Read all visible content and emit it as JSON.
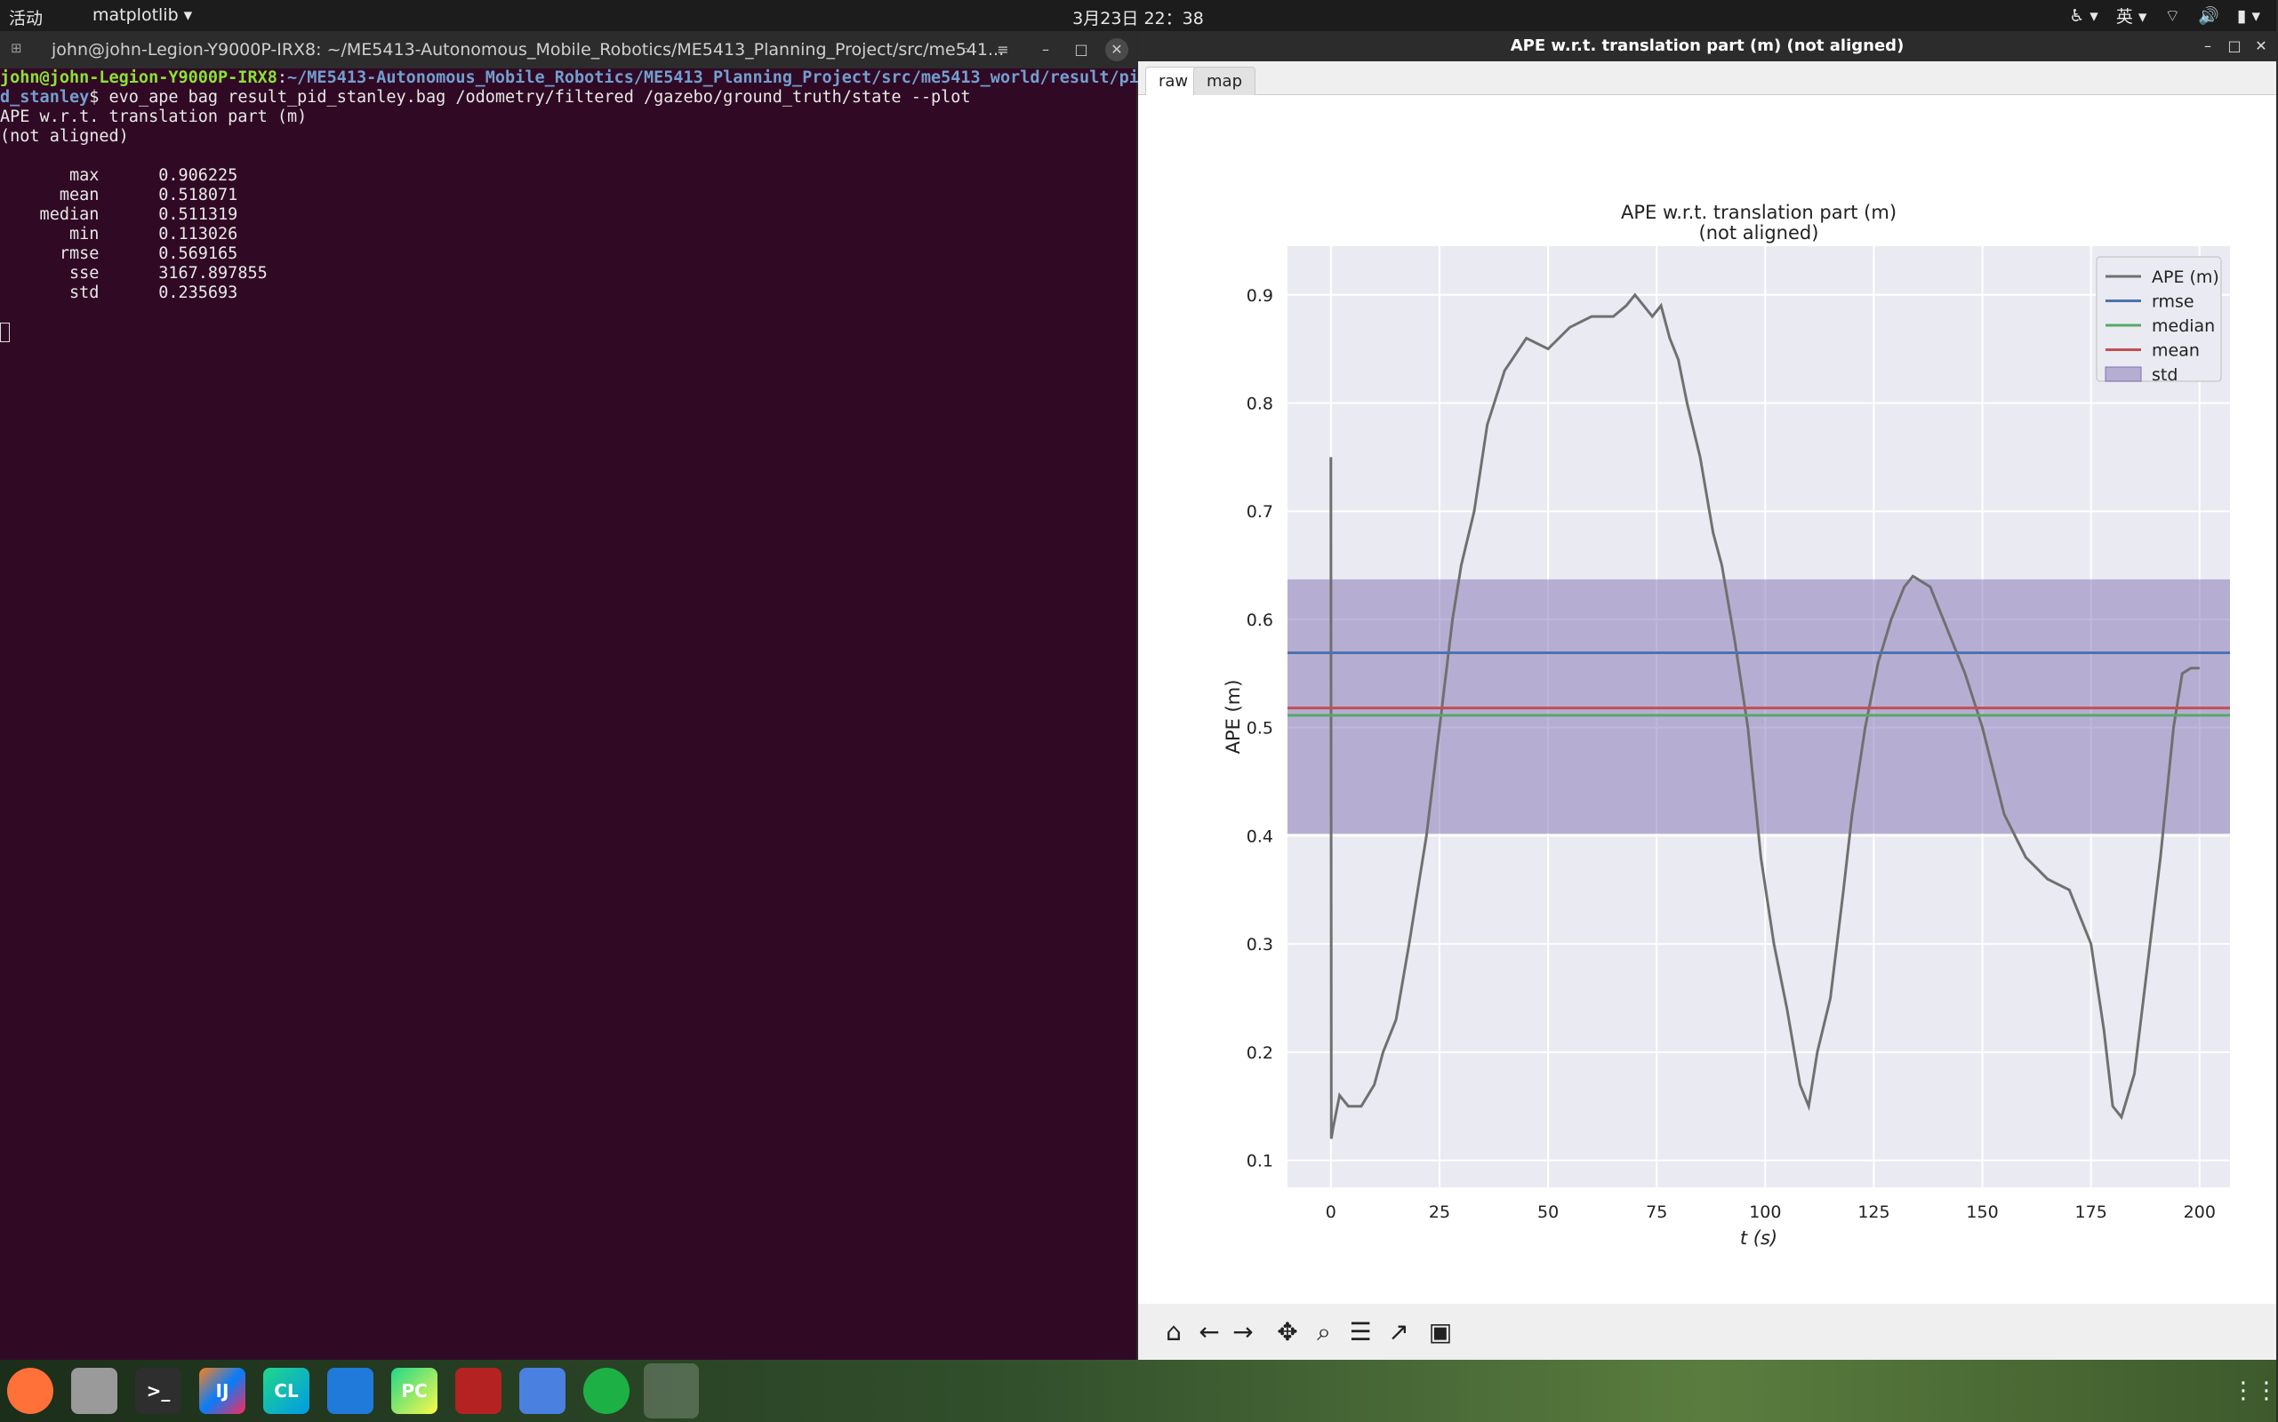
{
  "topbar": {
    "activities": "活动",
    "app_menu": "matplotlib",
    "clock": "3月23日 22：38",
    "input_method": "英"
  },
  "terminal": {
    "title": "john@john-Legion-Y9000P-IRX8: ~/ME5413-Autonomous_Mobile_Robotics/ME5413_Planning_Project/src/me541...",
    "prompt_user": "john@john-Legion-Y9000P-IRX8",
    "prompt_path_line1": "~/ME5413-Autonomous_Mobile_Robotics/ME5413_Planning_Project/src/me5413_world/result/pi",
    "prompt_path_line2": "d_stanley",
    "command": "$ evo_ape bag result_pid_stanley.bag /odometry/filtered /gazebo/ground_truth/state --plot",
    "output_title": "APE w.r.t. translation part (m)",
    "output_subtitle": "(not aligned)",
    "stats": [
      {
        "name": "max",
        "value": "0.906225"
      },
      {
        "name": "mean",
        "value": "0.518071"
      },
      {
        "name": "median",
        "value": "0.511319"
      },
      {
        "name": "min",
        "value": "0.113026"
      },
      {
        "name": "rmse",
        "value": "0.569165"
      },
      {
        "name": "sse",
        "value": "3167.897855"
      },
      {
        "name": "std",
        "value": "0.235693"
      }
    ]
  },
  "plot_window": {
    "title": "APE w.r.t. translation part (m) (not aligned)",
    "tabs": [
      "raw",
      "map"
    ],
    "active_tab": "raw"
  },
  "chart_data": {
    "type": "line",
    "title": "APE w.r.t. translation part (m)",
    "subtitle": "(not aligned)",
    "xlabel": "t (s)",
    "ylabel": "APE (m)",
    "xlim": [
      -10,
      207
    ],
    "ylim": [
      0.075,
      0.945
    ],
    "xticks": [
      0,
      25,
      50,
      75,
      100,
      125,
      150,
      175,
      200
    ],
    "yticks": [
      0.1,
      0.2,
      0.3,
      0.4,
      0.5,
      0.6,
      0.7,
      0.8,
      0.9
    ],
    "grid": true,
    "legend_position": "top-right",
    "legend": [
      "APE (m)",
      "rmse",
      "median",
      "mean",
      "std"
    ],
    "colors": {
      "ape": "#707070",
      "rmse": "#4c72b0",
      "median": "#55a868",
      "mean": "#c44e52",
      "std": "#8172b2",
      "background": "#eaeaf2"
    },
    "stats": {
      "rmse": 0.569165,
      "median": 0.511319,
      "mean": 0.518071,
      "std": 0.235693
    },
    "std_band": [
      0.402,
      0.637
    ],
    "series": [
      {
        "name": "APE (m)",
        "x": [
          0,
          0.1,
          0.5,
          2,
          4,
          7,
          10,
          12,
          15,
          18,
          20,
          22,
          25,
          28,
          30,
          33,
          36,
          40,
          45,
          50,
          55,
          60,
          65,
          68,
          70,
          72,
          74,
          76,
          78,
          80,
          82,
          85,
          88,
          90,
          93,
          96,
          99,
          102,
          105,
          108,
          110,
          112,
          115,
          118,
          120,
          123,
          126,
          129,
          132,
          134,
          136,
          138,
          140,
          143,
          146,
          150,
          155,
          160,
          165,
          170,
          175,
          178,
          180,
          182,
          185,
          188,
          191,
          194,
          196,
          198,
          200
        ],
        "y": [
          0.75,
          0.12,
          0.13,
          0.16,
          0.15,
          0.15,
          0.17,
          0.2,
          0.23,
          0.3,
          0.35,
          0.4,
          0.5,
          0.6,
          0.65,
          0.7,
          0.78,
          0.83,
          0.86,
          0.85,
          0.87,
          0.88,
          0.88,
          0.89,
          0.9,
          0.89,
          0.88,
          0.89,
          0.86,
          0.84,
          0.8,
          0.75,
          0.68,
          0.65,
          0.58,
          0.5,
          0.38,
          0.3,
          0.24,
          0.17,
          0.15,
          0.2,
          0.25,
          0.35,
          0.42,
          0.5,
          0.56,
          0.6,
          0.63,
          0.64,
          0.635,
          0.63,
          0.61,
          0.58,
          0.55,
          0.5,
          0.42,
          0.38,
          0.36,
          0.35,
          0.3,
          0.22,
          0.15,
          0.14,
          0.18,
          0.28,
          0.38,
          0.5,
          0.55,
          0.555,
          0.555
        ]
      }
    ]
  },
  "toolbar": {
    "buttons": [
      "home-icon",
      "back-arrow-icon",
      "forward-arrow-icon",
      "pan-icon",
      "zoom-icon",
      "configure-subplots-icon",
      "edit-axis-icon",
      "save-icon"
    ]
  },
  "taskbar": {
    "apps": [
      {
        "name": "firefox",
        "label": ""
      },
      {
        "name": "files",
        "label": ""
      },
      {
        "name": "terminal",
        "label": ">_"
      },
      {
        "name": "intellij",
        "label": "IJ"
      },
      {
        "name": "clion",
        "label": "CL"
      },
      {
        "name": "vscode",
        "label": ""
      },
      {
        "name": "pycharm",
        "label": "PC"
      },
      {
        "name": "app-red",
        "label": ""
      },
      {
        "name": "screenshot",
        "label": ""
      },
      {
        "name": "wechat",
        "label": ""
      },
      {
        "name": "matplotlib",
        "label": ""
      }
    ]
  }
}
